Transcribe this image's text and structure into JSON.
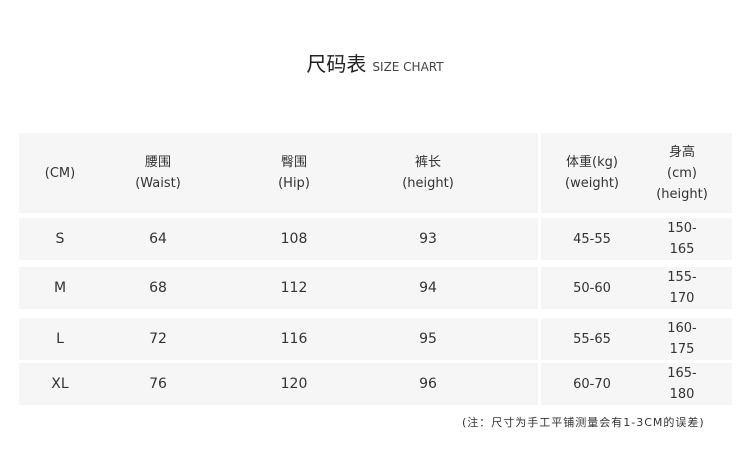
{
  "title": {
    "zh": "尺码表",
    "en": "SIZE CHART"
  },
  "header": [
    {
      "l1": "(CM)",
      "l2": ""
    },
    {
      "l1": "腰围",
      "l2": "(Waist)"
    },
    {
      "l1": "臀围",
      "l2": "(Hip)"
    },
    {
      "l1": "裤长",
      "l2": "(height)"
    },
    {
      "l1": "体重(kg)",
      "l2": "(weight)"
    },
    {
      "l1": "身高(cm)",
      "l2": "(height)"
    }
  ],
  "rows": [
    [
      "S",
      "64",
      "108",
      "93",
      "45-55",
      "150-165"
    ],
    [
      "M",
      "68",
      "112",
      "94",
      "50-60",
      "155-170"
    ],
    [
      "L",
      "72",
      "116",
      "95",
      "55-65",
      "160-175"
    ],
    [
      "XL",
      "76",
      "120",
      "96",
      "60-70",
      "165-180"
    ]
  ],
  "note": "(注：尺寸为手工平铺测量会有1-3CM的误差)"
}
